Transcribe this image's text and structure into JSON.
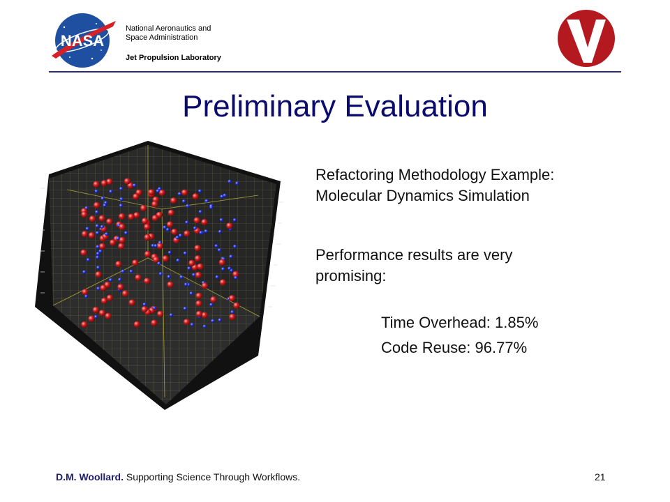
{
  "header": {
    "agency_line1": "National Aeronautics and",
    "agency_line2": "Space Administration",
    "lab": "Jet Propulsion Laboratory",
    "nasa_logo_text": "NASA",
    "right_logo_letter": "V"
  },
  "slide": {
    "title": "Preliminary Evaluation",
    "intro_line1": "Refactoring Methodology Example:",
    "intro_line2": "Molecular Dynamics Simulation",
    "perf_line1": "Performance results are very",
    "perf_line2": "promising:",
    "metric1": "Time Overhead: 1.85%",
    "metric2": "Code Reuse: 96.77%"
  },
  "figure": {
    "icon": "molecular-dynamics-3d-plot",
    "red_color": "#d21e1e",
    "blue_color": "#2a3cf0"
  },
  "footer": {
    "author": "D.M. Woollard.",
    "talk_title": "Supporting Science Through Workflows.",
    "page_number": "21"
  },
  "colors": {
    "title": "#0b0b6e",
    "rule": "#2b2b6b",
    "nasa_blue": "#1e4fa0",
    "nasa_red": "#d61f26",
    "v_logo_red": "#b3191f"
  }
}
